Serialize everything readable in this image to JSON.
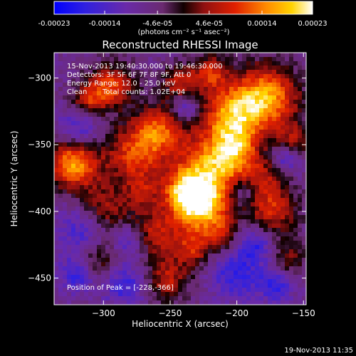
{
  "colorbar": {
    "tick_labels": [
      "-0.00023",
      "-0.00014",
      "-4.6e-05",
      "4.6e-05",
      "0.00014",
      "0.00023"
    ],
    "tick_values": [
      -0.00023,
      -0.00014,
      -4.6e-05,
      4.6e-05,
      0.00014,
      0.00023
    ],
    "units": "(photons cm⁻² s⁻¹ asec⁻²)",
    "range": [
      -0.00023,
      0.00023
    ],
    "colormap": "rainbow-to-hot (blue, purple, red, orange, yellow, white)"
  },
  "image": {
    "title": "Reconstructed RHESSI Image",
    "time_range": "15-Nov-2013 19:40:30.000 to 19:46:30.000",
    "detectors": "Detectors: 3F 5F 6F 7F 8F 9F, Att 0",
    "energy_range": "Energy Range: 12.0 - 25.0 keV",
    "algorithm": "Clean",
    "total_counts": "Total counts: 1.02E+04",
    "peak_position": "Position of Peak = [-228,-366]"
  },
  "axes": {
    "xlabel": "Heliocentric X (arcsec)",
    "ylabel": "Heliocentric Y (arcsec)",
    "xlim": [
      -337,
      -148
    ],
    "ylim": [
      -470,
      -281
    ],
    "x_ticks": [
      -300,
      -250,
      -200,
      -150
    ],
    "x_tick_labels": [
      "−300",
      "−250",
      "−200",
      "−150"
    ],
    "y_ticks": [
      -300,
      -350,
      -400,
      -450
    ],
    "y_tick_labels": [
      "−300",
      "−350",
      "−400",
      "−450"
    ]
  },
  "footer": {
    "timestamp": "19-Nov-2013 11:35"
  },
  "colors": {
    "background": "#000000",
    "text": "#ffffff",
    "axes": "#ffffff"
  }
}
